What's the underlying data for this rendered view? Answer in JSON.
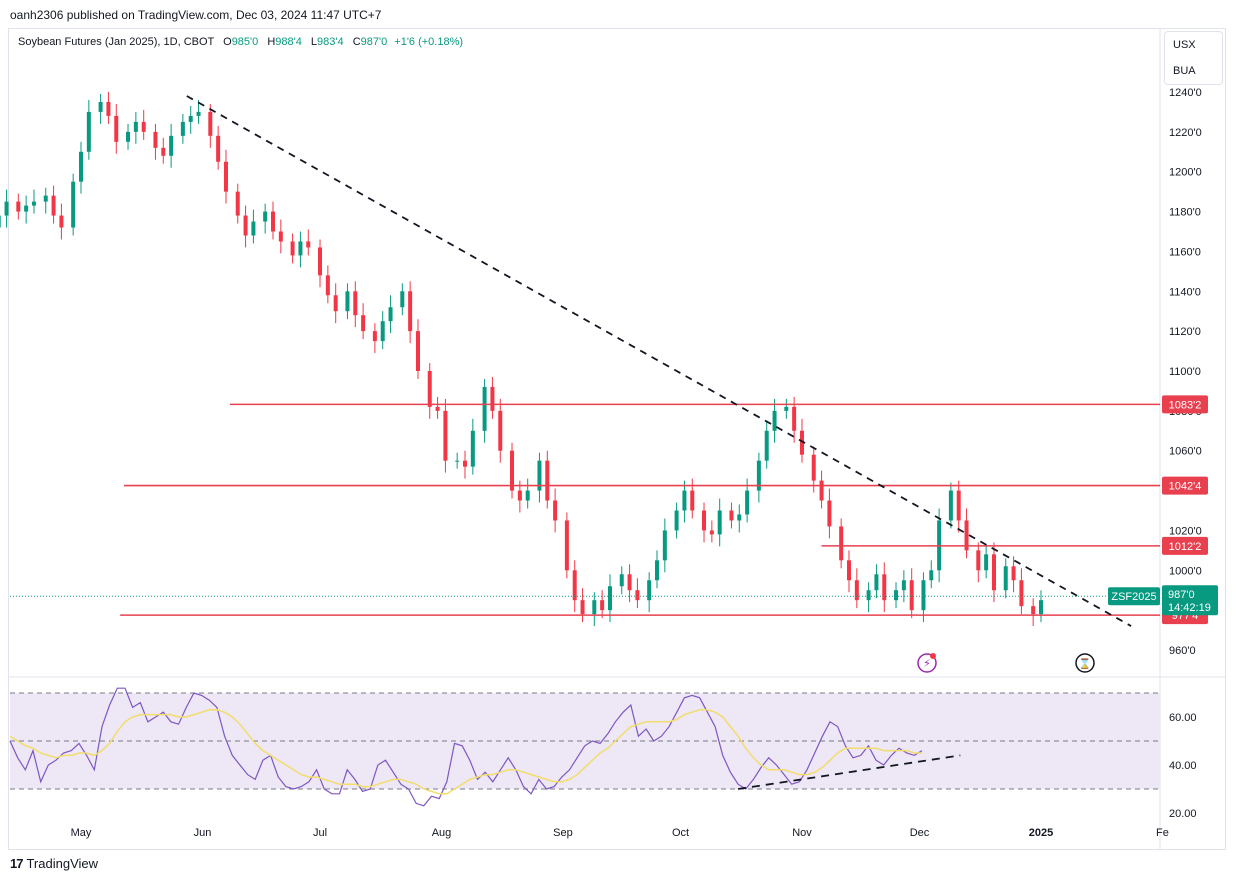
{
  "publisher": "oanh2306 published on TradingView.com, Dec 03, 2024 11:47 UTC+7",
  "legend": {
    "symbol": "Soybean Futures (Jan 2025), 1D, CBOT",
    "o_label": "O",
    "o": "985'0",
    "h_label": "H",
    "h": "988'4",
    "l_label": "L",
    "l": "983'4",
    "c_label": "C",
    "c": "987'0",
    "change": "+1'6 (+0.18%)"
  },
  "units": [
    "USX",
    "BUA"
  ],
  "colors": {
    "up": "#089981",
    "down": "#f23645",
    "level": "#e8404f",
    "rsi": "#7e57c2",
    "rsi_ma": "#f2dd6c",
    "rsi_band": "#ede7f6"
  },
  "icons": [
    "lightning-icon",
    "hourglass-icon",
    "tradingview-logo-icon"
  ],
  "footer": "TradingView",
  "chart_data": [
    {
      "type": "candlestick",
      "title": "Soybean Futures (Jan 2025), 1D, CBOT",
      "ylim": [
        955,
        1248
      ],
      "y_ticks": [
        1240,
        1220,
        1200,
        1180,
        1160,
        1140,
        1120,
        1100,
        1080,
        1060,
        1040,
        1020,
        1000,
        980,
        960
      ],
      "y_tick_labels": [
        "1240'0",
        "1220'0",
        "1200'0",
        "1180'0",
        "1160'0",
        "1140'0",
        "1120'0",
        "1100'0",
        "1080'0",
        "1060'0",
        "1040'0",
        "1020'0",
        "1000'0",
        "980'0",
        "960'0"
      ],
      "x_tick_labels": [
        "May",
        "Jun",
        "Jul",
        "Aug",
        "Sep",
        "Oct",
        "Nov",
        "Dec",
        "2025",
        "Fe"
      ],
      "x_tick_dates": [
        "2024-05-01",
        "2024-06-01",
        "2024-07-01",
        "2024-08-01",
        "2024-09-01",
        "2024-10-01",
        "2024-11-01",
        "2024-12-01",
        "2025-01-01",
        "2025-02-01"
      ],
      "x_range": [
        "2024-04-01",
        "2025-02-01"
      ],
      "closes": [
        {
          "d": "2024-04-01",
          "c": 1184
        },
        {
          "d": "2024-04-03",
          "c": 1178
        },
        {
          "d": "2024-04-05",
          "c": 1168
        },
        {
          "d": "2024-04-08",
          "c": 1172
        },
        {
          "d": "2024-04-10",
          "c": 1178
        },
        {
          "d": "2024-04-12",
          "c": 1185
        },
        {
          "d": "2024-04-15",
          "c": 1180
        },
        {
          "d": "2024-04-17",
          "c": 1183
        },
        {
          "d": "2024-04-19",
          "c": 1185
        },
        {
          "d": "2024-04-22",
          "c": 1188
        },
        {
          "d": "2024-04-24",
          "c": 1178
        },
        {
          "d": "2024-04-26",
          "c": 1172
        },
        {
          "d": "2024-04-29",
          "c": 1195
        },
        {
          "d": "2024-05-01",
          "c": 1210
        },
        {
          "d": "2024-05-03",
          "c": 1230
        },
        {
          "d": "2024-05-06",
          "c": 1235
        },
        {
          "d": "2024-05-08",
          "c": 1228
        },
        {
          "d": "2024-05-10",
          "c": 1215
        },
        {
          "d": "2024-05-13",
          "c": 1220
        },
        {
          "d": "2024-05-15",
          "c": 1225
        },
        {
          "d": "2024-05-17",
          "c": 1220
        },
        {
          "d": "2024-05-20",
          "c": 1212
        },
        {
          "d": "2024-05-22",
          "c": 1208
        },
        {
          "d": "2024-05-24",
          "c": 1218
        },
        {
          "d": "2024-05-27",
          "c": 1225
        },
        {
          "d": "2024-05-29",
          "c": 1228
        },
        {
          "d": "2024-05-31",
          "c": 1230
        },
        {
          "d": "2024-06-03",
          "c": 1218
        },
        {
          "d": "2024-06-05",
          "c": 1205
        },
        {
          "d": "2024-06-07",
          "c": 1190
        },
        {
          "d": "2024-06-10",
          "c": 1178
        },
        {
          "d": "2024-06-12",
          "c": 1168
        },
        {
          "d": "2024-06-14",
          "c": 1175
        },
        {
          "d": "2024-06-17",
          "c": 1180
        },
        {
          "d": "2024-06-19",
          "c": 1170
        },
        {
          "d": "2024-06-21",
          "c": 1165
        },
        {
          "d": "2024-06-24",
          "c": 1158
        },
        {
          "d": "2024-06-26",
          "c": 1165
        },
        {
          "d": "2024-06-28",
          "c": 1162
        },
        {
          "d": "2024-07-01",
          "c": 1148
        },
        {
          "d": "2024-07-03",
          "c": 1138
        },
        {
          "d": "2024-07-05",
          "c": 1130
        },
        {
          "d": "2024-07-08",
          "c": 1140
        },
        {
          "d": "2024-07-10",
          "c": 1128
        },
        {
          "d": "2024-07-12",
          "c": 1120
        },
        {
          "d": "2024-07-15",
          "c": 1115
        },
        {
          "d": "2024-07-17",
          "c": 1125
        },
        {
          "d": "2024-07-19",
          "c": 1132
        },
        {
          "d": "2024-07-22",
          "c": 1140
        },
        {
          "d": "2024-07-24",
          "c": 1120
        },
        {
          "d": "2024-07-26",
          "c": 1100
        },
        {
          "d": "2024-07-29",
          "c": 1082
        },
        {
          "d": "2024-07-31",
          "c": 1080
        },
        {
          "d": "2024-08-02",
          "c": 1055
        },
        {
          "d": "2024-08-05",
          "c": 1055
        },
        {
          "d": "2024-08-07",
          "c": 1052
        },
        {
          "d": "2024-08-09",
          "c": 1070
        },
        {
          "d": "2024-08-12",
          "c": 1092
        },
        {
          "d": "2024-08-14",
          "c": 1080
        },
        {
          "d": "2024-08-16",
          "c": 1060
        },
        {
          "d": "2024-08-19",
          "c": 1040
        },
        {
          "d": "2024-08-21",
          "c": 1035
        },
        {
          "d": "2024-08-23",
          "c": 1040
        },
        {
          "d": "2024-08-26",
          "c": 1055
        },
        {
          "d": "2024-08-28",
          "c": 1035
        },
        {
          "d": "2024-08-30",
          "c": 1025
        },
        {
          "d": "2024-09-02",
          "c": 1000
        },
        {
          "d": "2024-09-04",
          "c": 985
        },
        {
          "d": "2024-09-06",
          "c": 978
        },
        {
          "d": "2024-09-09",
          "c": 985
        },
        {
          "d": "2024-09-11",
          "c": 980
        },
        {
          "d": "2024-09-13",
          "c": 992
        },
        {
          "d": "2024-09-16",
          "c": 998
        },
        {
          "d": "2024-09-18",
          "c": 990
        },
        {
          "d": "2024-09-20",
          "c": 985
        },
        {
          "d": "2024-09-23",
          "c": 995
        },
        {
          "d": "2024-09-25",
          "c": 1005
        },
        {
          "d": "2024-09-27",
          "c": 1020
        },
        {
          "d": "2024-09-30",
          "c": 1030
        },
        {
          "d": "2024-10-02",
          "c": 1040
        },
        {
          "d": "2024-10-04",
          "c": 1030
        },
        {
          "d": "2024-10-07",
          "c": 1020
        },
        {
          "d": "2024-10-09",
          "c": 1018
        },
        {
          "d": "2024-10-11",
          "c": 1030
        },
        {
          "d": "2024-10-14",
          "c": 1025
        },
        {
          "d": "2024-10-16",
          "c": 1028
        },
        {
          "d": "2024-10-18",
          "c": 1040
        },
        {
          "d": "2024-10-21",
          "c": 1055
        },
        {
          "d": "2024-10-23",
          "c": 1070
        },
        {
          "d": "2024-10-25",
          "c": 1080
        },
        {
          "d": "2024-10-28",
          "c": 1082
        },
        {
          "d": "2024-10-30",
          "c": 1070
        },
        {
          "d": "2024-11-01",
          "c": 1058
        },
        {
          "d": "2024-11-04",
          "c": 1045
        },
        {
          "d": "2024-11-06",
          "c": 1035
        },
        {
          "d": "2024-11-08",
          "c": 1022
        },
        {
          "d": "2024-11-11",
          "c": 1005
        },
        {
          "d": "2024-11-13",
          "c": 995
        },
        {
          "d": "2024-11-15",
          "c": 985
        },
        {
          "d": "2024-11-18",
          "c": 990
        },
        {
          "d": "2024-11-20",
          "c": 998
        },
        {
          "d": "2024-11-22",
          "c": 985
        },
        {
          "d": "2024-11-25",
          "c": 990
        },
        {
          "d": "2024-11-27",
          "c": 995
        },
        {
          "d": "2024-11-29",
          "c": 980
        },
        {
          "d": "2024-12-02",
          "c": 995
        },
        {
          "d": "2024-12-04",
          "c": 1000
        },
        {
          "d": "2024-12-06",
          "c": 1025
        },
        {
          "d": "2024-12-09",
          "c": 1040
        },
        {
          "d": "2024-12-11",
          "c": 1025
        },
        {
          "d": "2024-12-13",
          "c": 1010
        },
        {
          "d": "2024-12-16",
          "c": 1000
        },
        {
          "d": "2024-12-18",
          "c": 1008
        },
        {
          "d": "2024-12-20",
          "c": 990
        },
        {
          "d": "2024-12-23",
          "c": 1002
        },
        {
          "d": "2024-12-25",
          "c": 995
        },
        {
          "d": "2024-12-27",
          "c": 982
        },
        {
          "d": "2024-12-30",
          "c": 978
        },
        {
          "d": "2025-01-01",
          "c": 985
        }
      ],
      "horizontal_levels": [
        {
          "value": 1083.25,
          "label": "1083'2",
          "from": "2024-06-08"
        },
        {
          "value": 1042.5,
          "label": "1042'4",
          "from": "2024-05-12"
        },
        {
          "value": 1012.25,
          "label": "1012'2",
          "from": "2024-11-06"
        },
        {
          "value": 977.5,
          "label": "977'4",
          "from": "2024-05-11"
        }
      ],
      "trendline": {
        "from": {
          "d": "2024-05-28",
          "v": 1238
        },
        "to": {
          "d": "2025-01-24",
          "v": 972
        }
      },
      "last_price": {
        "value": 987,
        "symbol": "ZSF2025",
        "label": "987'0",
        "countdown": "14:42:19"
      }
    },
    {
      "type": "line",
      "title": "RSI",
      "ylim": [
        15,
        76
      ],
      "y_ticks": [
        60,
        40,
        20
      ],
      "y_tick_labels": [
        "60.00",
        "40.00",
        "20.00"
      ],
      "band": [
        30,
        70
      ],
      "midline": 50,
      "series": [
        {
          "values": [
            50,
            43,
            38,
            46,
            33,
            40,
            42,
            45,
            46,
            49,
            44,
            38,
            56,
            65,
            72,
            72,
            64,
            66,
            58,
            60,
            62,
            58,
            57,
            64,
            70,
            69,
            67,
            64,
            52,
            44,
            40,
            36,
            34,
            42,
            44,
            35,
            31,
            30,
            31,
            33,
            38,
            30,
            28,
            28,
            38,
            34,
            29,
            30,
            40,
            42,
            37,
            32,
            30,
            24,
            23,
            27,
            26,
            33,
            49,
            48,
            42,
            34,
            37,
            33,
            38,
            43,
            38,
            31,
            28,
            34,
            30,
            31,
            35,
            38,
            43,
            48,
            50,
            49,
            53,
            58,
            62,
            65,
            52,
            55,
            50,
            52,
            56,
            62,
            68,
            69,
            68,
            62,
            56,
            44,
            37,
            32,
            30,
            34,
            39,
            43,
            40,
            36,
            32,
            33,
            38,
            45,
            52,
            58,
            56,
            48,
            43,
            44,
            48,
            42,
            40,
            44,
            47,
            45,
            44,
            46
          ]
        },
        {
          "values": [
            52,
            50,
            48,
            47,
            45,
            44,
            43,
            44,
            44,
            45,
            45,
            44,
            46,
            49,
            54,
            58,
            60,
            61,
            61,
            61,
            61,
            61,
            60,
            60,
            61,
            62,
            63,
            63,
            62,
            60,
            57,
            53,
            49,
            46,
            44,
            42,
            40,
            38,
            36,
            35,
            35,
            34,
            33,
            32,
            32,
            32,
            31,
            31,
            32,
            33,
            34,
            34,
            33,
            32,
            30,
            29,
            28,
            28,
            30,
            32,
            34,
            35,
            36,
            36,
            37,
            38,
            38,
            37,
            36,
            35,
            34,
            33,
            33,
            34,
            36,
            39,
            42,
            45,
            47,
            50,
            53,
            56,
            57,
            58,
            58,
            58,
            58,
            59,
            61,
            62,
            63,
            63,
            62,
            60,
            56,
            52,
            47,
            43,
            40,
            38,
            38,
            38,
            37,
            36,
            36,
            37,
            39,
            42,
            45,
            47,
            47,
            47,
            47,
            47,
            46,
            46,
            46,
            46,
            45,
            45
          ]
        }
      ],
      "trendline": {
        "from_index": 95,
        "from_value": 30,
        "to_index": 124,
        "to_value": 44
      }
    }
  ]
}
